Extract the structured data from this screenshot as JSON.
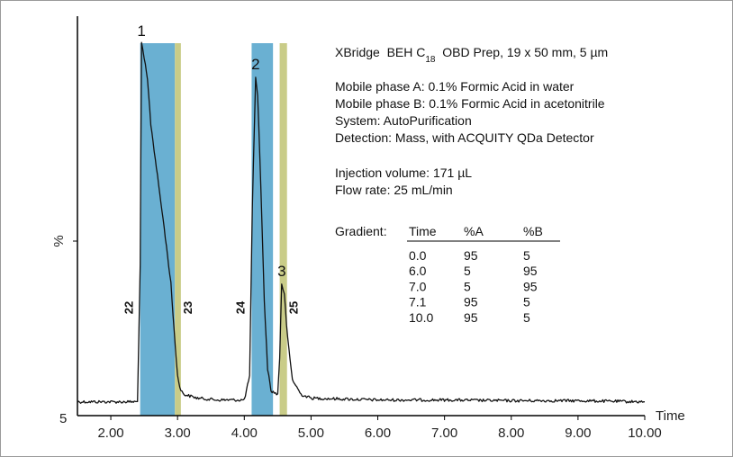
{
  "chart_data": {
    "type": "line",
    "xlabel": "Time",
    "ylabel": "%",
    "y_min_label": "5",
    "xlim": [
      1.5,
      10.0
    ],
    "ylim": [
      0,
      100
    ],
    "x_ticks": [
      2.0,
      3.0,
      4.0,
      5.0,
      6.0,
      7.0,
      8.0,
      9.0,
      10.0
    ],
    "x_tick_labels": [
      "2.00",
      "3.00",
      "4.00",
      "5.00",
      "6.00",
      "7.00",
      "8.00",
      "9.00",
      "10.00"
    ],
    "baseline": 3,
    "peaks": [
      {
        "label": "1",
        "x": 2.46,
        "y": 100
      },
      {
        "label": "2",
        "x": 4.17,
        "y": 91
      },
      {
        "label": "3",
        "x": 4.56,
        "y": 35
      }
    ],
    "series": [
      {
        "x": [
          1.5,
          2.0,
          2.4,
          2.44,
          2.46,
          2.5,
          2.55,
          2.6,
          2.7,
          2.8,
          2.9,
          2.95,
          3.0,
          3.05,
          3.1,
          3.3,
          3.6,
          4.0,
          4.08,
          4.12,
          4.17,
          4.2,
          4.25,
          4.3,
          4.35,
          4.4,
          4.5,
          4.53,
          4.56,
          4.6,
          4.65,
          4.72,
          4.85,
          5.0,
          6.0,
          7.0,
          8.0,
          9.0,
          10.0
        ],
        "y": [
          3,
          3,
          3,
          40,
          100,
          96,
          90,
          78,
          64,
          50,
          35,
          22,
          10,
          6,
          5,
          4,
          3.5,
          3.5,
          10,
          55,
          91,
          86,
          60,
          30,
          12,
          6,
          5,
          15,
          35,
          32,
          20,
          9,
          5,
          4,
          3.5,
          3.5,
          3.3,
          3.3,
          3
        ]
      }
    ],
    "fractions": [
      {
        "label": "22",
        "x_start": 2.44,
        "x_end": 2.96,
        "color": "#6ab0d2"
      },
      {
        "label": "23",
        "x_start": 2.96,
        "x_end": 3.05,
        "color": "#c9cc88"
      },
      {
        "label": "24",
        "x_start": 4.11,
        "x_end": 4.43,
        "color": "#6ab0d2"
      },
      {
        "label": "25",
        "x_start": 4.53,
        "x_end": 4.64,
        "color": "#c9cc88"
      }
    ]
  },
  "info": {
    "column_prefix": "XBridge  BEH C",
    "column_subscript": "18",
    "column_suffix": "  OBD Prep, 19 x 50 mm, 5 µm",
    "mobile_a": "Mobile phase A: 0.1% Formic Acid in water",
    "mobile_b": "Mobile phase B: 0.1% Formic Acid in acetonitrile",
    "system": "System: AutoPurification",
    "detection": "Detection: Mass, with ACQUITY QDa Detector",
    "injection": "Injection volume: 171 µL",
    "flow": "Flow rate: 25 mL/min",
    "gradient_label": "Gradient:",
    "gradient_headers": [
      "Time",
      "%A",
      "%B"
    ],
    "gradient_rows": [
      [
        "0.0",
        "95",
        "5"
      ],
      [
        "6.0",
        "5",
        "95"
      ],
      [
        "7.0",
        "5",
        "95"
      ],
      [
        "7.1",
        "95",
        "5"
      ],
      [
        "10.0",
        "95",
        "5"
      ]
    ]
  }
}
